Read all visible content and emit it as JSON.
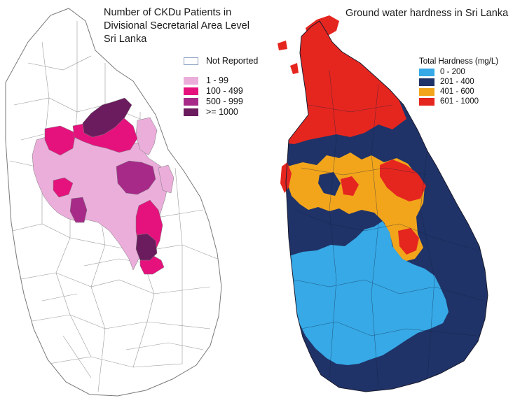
{
  "left_map": {
    "title_lines": [
      "Number of CKDu Patients in",
      "Divisional Secretarial Area Level",
      "Sri Lanka"
    ],
    "legend": [
      {
        "label": "Not Reported",
        "color": "#ffffff"
      },
      {
        "label": "1 - 99",
        "color": "#ebaedb"
      },
      {
        "label": "100 - 499",
        "color": "#e5127e"
      },
      {
        "label": "500 - 999",
        "color": "#a72a88"
      },
      {
        "label": ">= 1000",
        "color": "#6b1c5e"
      }
    ]
  },
  "right_map": {
    "title": "Ground water hardness in Sri Lanka",
    "legend_title": "Total Hardness (mg/L)",
    "legend": [
      {
        "label": "0 - 200",
        "color": "#36a9e6"
      },
      {
        "label": "201 - 400",
        "color": "#1f3368"
      },
      {
        "label": "401 - 600",
        "color": "#f2a51b"
      },
      {
        "label": "601 - 1000",
        "color": "#e5261f"
      }
    ]
  }
}
